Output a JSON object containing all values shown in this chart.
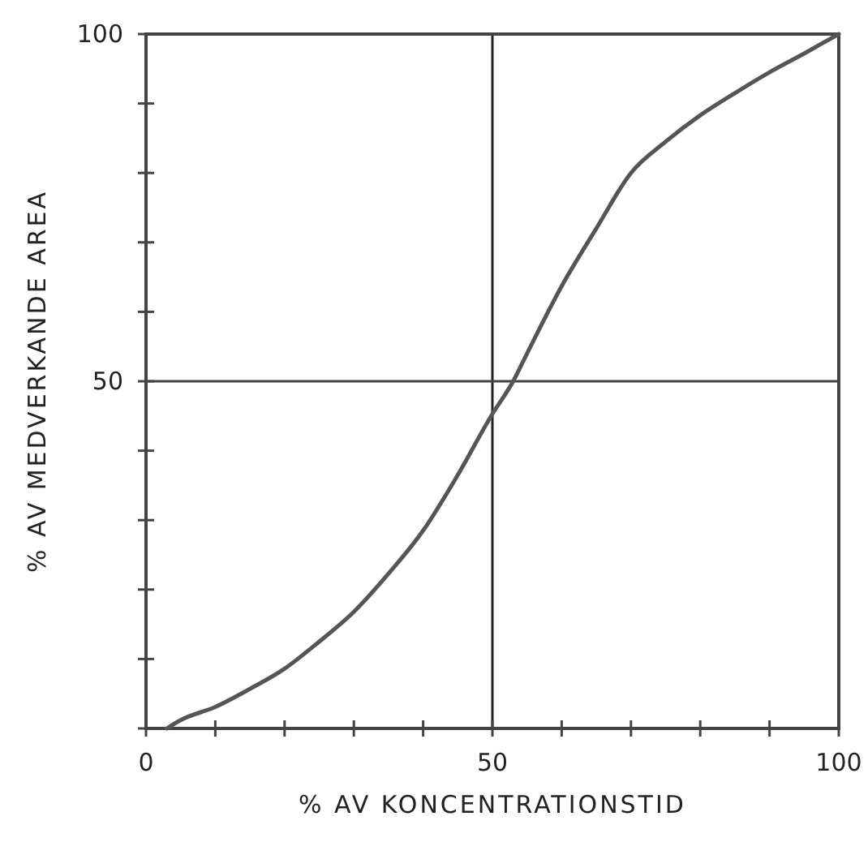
{
  "chart_data": {
    "type": "line",
    "xlabel": "% AV KONCENTRATIONSTID",
    "ylabel": "% AV MEDVERKANDE AREA",
    "x": [
      3,
      5,
      10,
      15,
      20,
      25,
      30,
      35,
      40,
      45,
      50,
      53,
      55,
      60,
      65,
      70,
      75,
      80,
      85,
      90,
      95,
      100
    ],
    "series": [
      {
        "color": "#555555",
        "values": [
          0,
          1.2,
          3.1,
          5.7,
          8.6,
          12.5,
          16.8,
          22.3,
          28.5,
          36.5,
          45.3,
          50,
          54,
          63.7,
          72,
          80,
          84.5,
          88.3,
          91.5,
          94.5,
          97.2,
          100
        ]
      }
    ],
    "xlim": [
      0,
      100
    ],
    "ylim": [
      0,
      100
    ],
    "xticks": [
      0,
      {
        "value": 10,
        "label": null
      },
      {
        "value": 20,
        "label": null
      },
      {
        "value": 30,
        "label": null
      },
      {
        "value": 40,
        "label": null
      },
      50,
      {
        "value": 60,
        "label": null
      },
      {
        "value": 70,
        "label": null
      },
      {
        "value": 80,
        "label": null
      },
      {
        "value": 90,
        "label": null
      },
      100
    ],
    "yticks": [
      {
        "value": 0,
        "label": null
      },
      {
        "value": 10,
        "label": null
      },
      {
        "value": 20,
        "label": null
      },
      {
        "value": 30,
        "label": null
      },
      {
        "value": 40,
        "label": null
      },
      50,
      {
        "value": 60,
        "label": null
      },
      {
        "value": 70,
        "label": null
      },
      {
        "value": 80,
        "label": null
      },
      {
        "value": 90,
        "label": null
      },
      100
    ],
    "ref_lines": [
      {
        "axis": "x",
        "value": 50,
        "color": "#222222"
      },
      {
        "axis": "y",
        "value": 50,
        "color": "#444444"
      }
    ],
    "marker": "none",
    "line_style": "solid"
  }
}
